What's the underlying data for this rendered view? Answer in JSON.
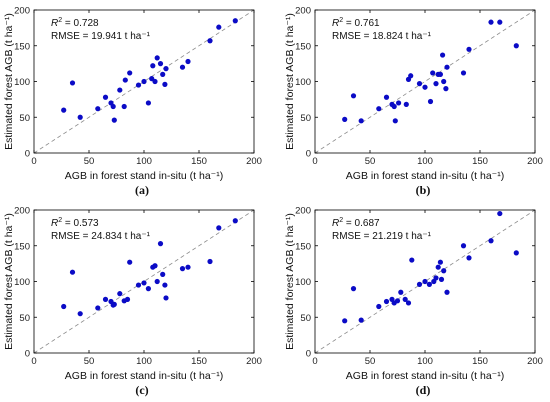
{
  "colors": {
    "point": "#0b0bc6",
    "one_to_one_line": "#8c8c8c"
  },
  "chart_data": [
    {
      "type": "scatter",
      "caption": "(a)",
      "xlabel": "AGB in forest stand in-situ (t ha⁻¹)",
      "ylabel": "Estimated forest AGB (t ha⁻¹)",
      "xlim": [
        0,
        200
      ],
      "ylim": [
        0,
        200
      ],
      "xticks": [
        "0",
        "50",
        "100",
        "150",
        "200"
      ],
      "yticks": [
        "0",
        "50",
        "100",
        "150",
        "200"
      ],
      "r2_label": "R",
      "r2_value": "= 0.728",
      "rmse_text": "RMSE = 19.941 t ha⁻¹",
      "reference_line": "1:1 dashed",
      "grid": false,
      "x": [
        27,
        35,
        42,
        58,
        65,
        70,
        72,
        73,
        78,
        82,
        83,
        87,
        95,
        100,
        104,
        107,
        108,
        110,
        112,
        115,
        117,
        119,
        120,
        135,
        140,
        160,
        168,
        183
      ],
      "y": [
        60,
        98,
        50,
        62,
        78,
        70,
        65,
        46,
        88,
        65,
        102,
        112,
        95,
        100,
        70,
        104,
        122,
        100,
        133,
        125,
        110,
        96,
        118,
        120,
        128,
        157,
        176,
        185
      ]
    },
    {
      "type": "scatter",
      "caption": "(b)",
      "xlabel": "AGB in forest stand in-situ (t ha⁻¹)",
      "ylabel": "Estimated forest AGB (t ha⁻¹)",
      "xlim": [
        0,
        200
      ],
      "ylim": [
        0,
        200
      ],
      "xticks": [
        "0",
        "50",
        "100",
        "150",
        "200"
      ],
      "yticks": [
        "0",
        "50",
        "100",
        "150",
        "200"
      ],
      "r2_label": "R",
      "r2_value": "= 0.761",
      "rmse_text": "RMSE = 18.824 t ha⁻¹",
      "reference_line": "1:1 dashed",
      "grid": false,
      "x": [
        27,
        35,
        42,
        58,
        65,
        70,
        72,
        73,
        76,
        83,
        85,
        87,
        95,
        100,
        105,
        107,
        110,
        112,
        114,
        116,
        117,
        119,
        120,
        135,
        140,
        160,
        168,
        183
      ],
      "y": [
        47,
        80,
        45,
        62,
        78,
        68,
        65,
        45,
        70,
        68,
        103,
        108,
        97,
        92,
        72,
        112,
        97,
        110,
        110,
        137,
        100,
        90,
        120,
        112,
        145,
        183,
        183,
        150
      ]
    },
    {
      "type": "scatter",
      "caption": "(c)",
      "xlabel": "AGB in forest stand in-situ (t ha⁻¹)",
      "ylabel": "Estimated forest AGB (t ha⁻¹)",
      "xlim": [
        0,
        200
      ],
      "ylim": [
        0,
        200
      ],
      "xticks": [
        "0",
        "50",
        "100",
        "150",
        "200"
      ],
      "yticks": [
        "0",
        "50",
        "100",
        "150",
        "200"
      ],
      "r2_label": "R",
      "r2_value": "= 0.573",
      "rmse_text": "RMSE = 24.834 t ha⁻¹",
      "reference_line": "1:1 dashed",
      "grid": false,
      "x": [
        27,
        35,
        42,
        58,
        65,
        70,
        72,
        73,
        78,
        82,
        85,
        87,
        95,
        100,
        104,
        108,
        110,
        112,
        115,
        117,
        119,
        120,
        135,
        140,
        160,
        168,
        183
      ],
      "y": [
        65,
        113,
        55,
        63,
        75,
        72,
        67,
        68,
        83,
        73,
        75,
        127,
        95,
        98,
        90,
        120,
        122,
        100,
        153,
        110,
        95,
        77,
        118,
        120,
        128,
        175,
        185
      ]
    },
    {
      "type": "scatter",
      "caption": "(d)",
      "xlabel": "AGB in forest stand in-situ (t ha⁻¹)",
      "ylabel": "Estimated forest AGB (t ha⁻¹)",
      "xlim": [
        0,
        200
      ],
      "ylim": [
        0,
        200
      ],
      "xticks": [
        "0",
        "50",
        "100",
        "150",
        "200"
      ],
      "yticks": [
        "0",
        "50",
        "100",
        "150",
        "200"
      ],
      "r2_label": "R",
      "r2_value": "= 0.687",
      "rmse_text": "RMSE = 21.219 t ha⁻¹",
      "reference_line": "1:1 dashed",
      "grid": false,
      "x": [
        27,
        35,
        42,
        58,
        65,
        70,
        72,
        75,
        78,
        82,
        85,
        88,
        95,
        100,
        104,
        108,
        110,
        112,
        114,
        115,
        117,
        120,
        135,
        140,
        160,
        168,
        183
      ],
      "y": [
        45,
        90,
        46,
        65,
        72,
        75,
        70,
        73,
        85,
        75,
        70,
        130,
        96,
        100,
        96,
        100,
        105,
        120,
        127,
        103,
        115,
        85,
        150,
        133,
        157,
        195,
        140
      ]
    }
  ]
}
